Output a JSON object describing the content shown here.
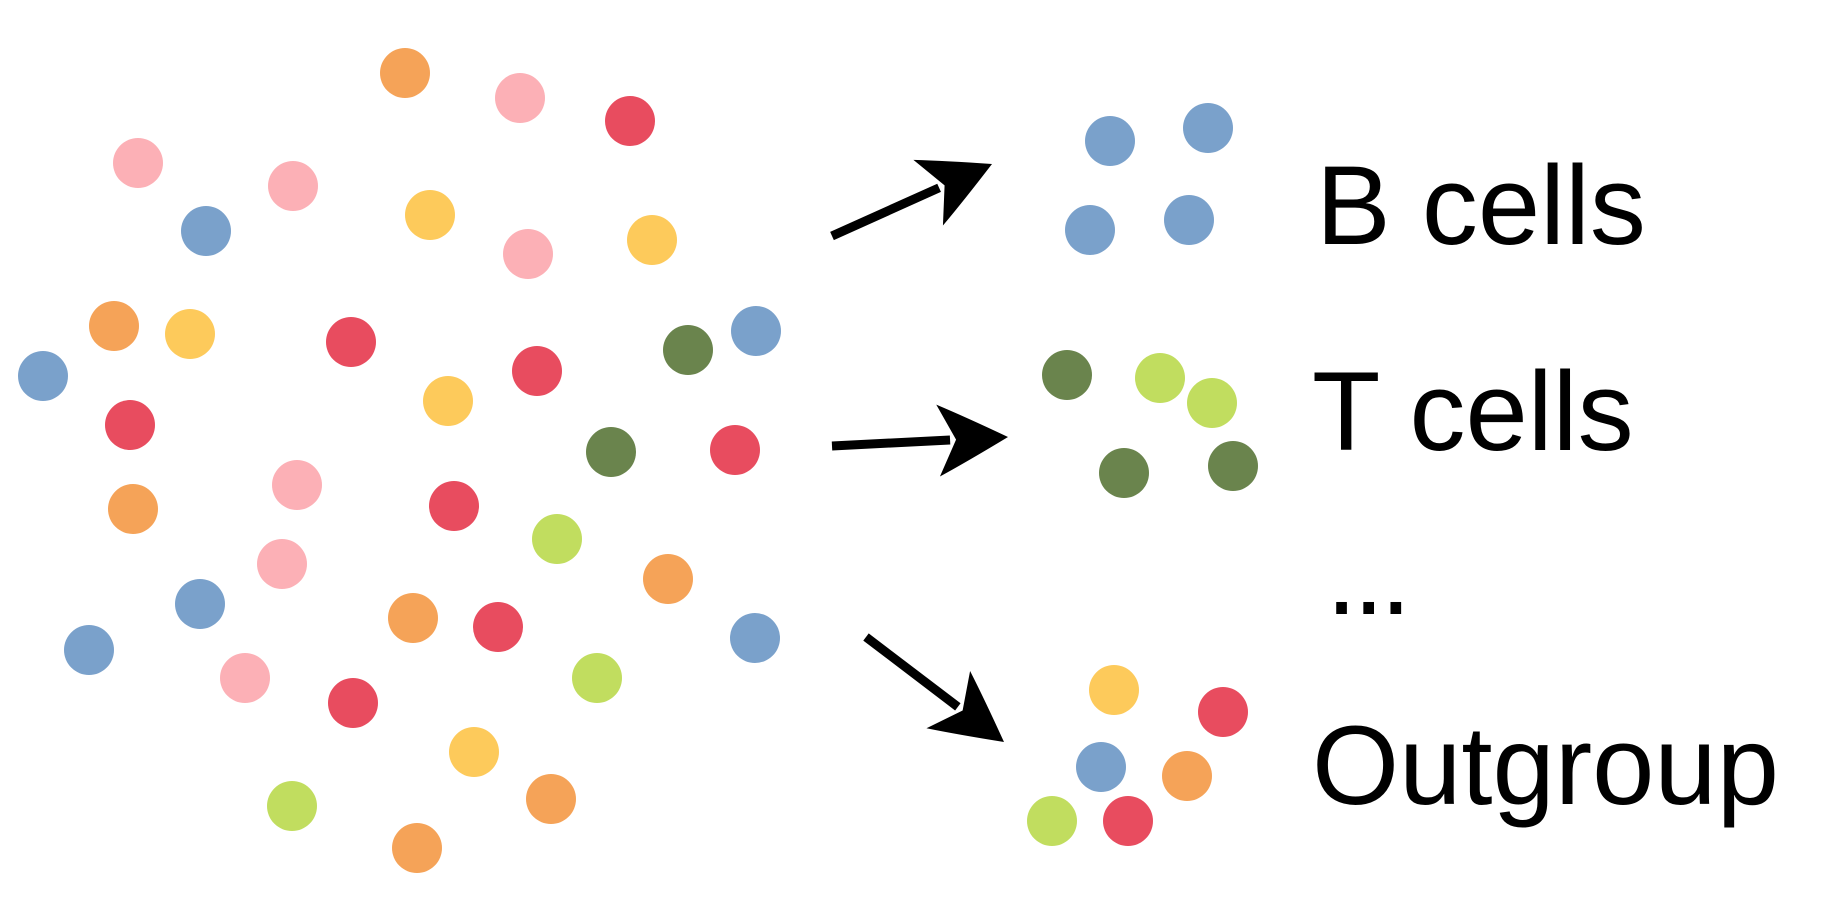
{
  "colors": {
    "blue": "#7aa1cb",
    "orange": "#f5a358",
    "pink": "#fcb0b6",
    "red": "#e84c5f",
    "yellow": "#fdca5b",
    "dark_green": "#6a844d",
    "light_green": "#c1dd5f",
    "arrow": "#000000"
  },
  "source_cells": [
    "orange",
    "pink",
    "red",
    "pink",
    "pink",
    "blue",
    "yellow",
    "pink",
    "yellow",
    "orange",
    "yellow",
    "red",
    "blue",
    "red",
    "dark_green",
    "blue",
    "yellow",
    "red",
    "dark_green",
    "red",
    "pink",
    "orange",
    "red",
    "pink",
    "light_green",
    "orange",
    "blue",
    "orange",
    "red",
    "blue",
    "pink",
    "red",
    "light_green",
    "blue",
    "yellow",
    "light_green",
    "orange",
    "orange"
  ],
  "groups": [
    {
      "label": "B cells",
      "cells": [
        "blue",
        "blue",
        "blue",
        "blue"
      ]
    },
    {
      "label": "T cells",
      "cells": [
        "dark_green",
        "light_green",
        "light_green",
        "dark_green",
        "dark_green"
      ]
    },
    {
      "label": "Outgroup",
      "cells": [
        "yellow",
        "red",
        "blue",
        "orange",
        "light_green",
        "red"
      ]
    }
  ],
  "ellipsis": "..."
}
